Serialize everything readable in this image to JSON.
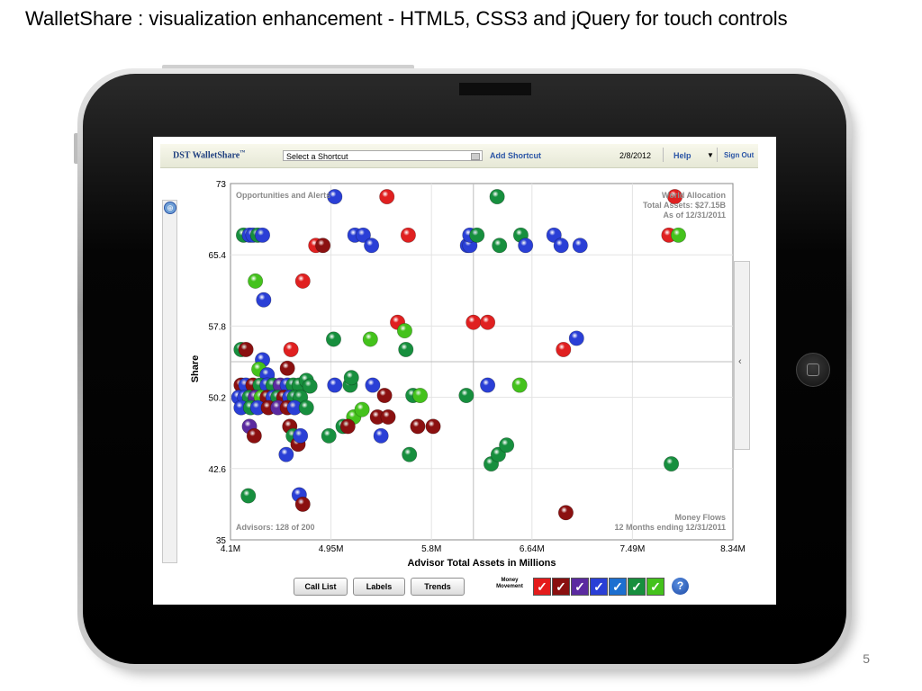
{
  "slide": {
    "title": "WalletShare : visualization enhancement  - HTML5, CSS3 and jQuery for touch controls",
    "number": "5"
  },
  "app": {
    "brand": "DST WalletShare",
    "brand_tm": "™",
    "shortcut_select": "Select a Shortcut",
    "add_shortcut": "Add Shortcut",
    "date": "2/8/2012",
    "help": "Help",
    "sign_out": "Sign Out"
  },
  "chart_labels": {
    "top_left": "Opportunities and Alerts",
    "top_right": [
      "World Allocation",
      "Total Assets: $27.15B",
      "As of 12/31/2011"
    ],
    "bottom_left": "Advisors: 128 of 200",
    "bottom_right": [
      "Money Flows",
      "12 Months ending 12/31/2011"
    ]
  },
  "chart_data": {
    "type": "scatter",
    "xlabel": "Advisor Total Assets in Millions",
    "ylabel": "Share",
    "xticks": [
      "4.1M",
      "4.95M",
      "5.8M",
      "6.64M",
      "7.49M",
      "8.34M"
    ],
    "yticks": [
      "73",
      "65.4",
      "57.8",
      "50.2",
      "42.6",
      "35"
    ],
    "xlim": [
      4.1,
      8.34
    ],
    "ylim": [
      35,
      73
    ],
    "quadrant_lines": {
      "x": 6.15,
      "y": 54.0
    },
    "colors": {
      "red": "#e02020",
      "darkred": "#8b1010",
      "purple": "#5b2aa0",
      "blue": "#2a3fd6",
      "darkgreen": "#178f3e",
      "green": "#44c21c"
    },
    "points": [
      {
        "x": 4.98,
        "y": 71.6,
        "c": "blue"
      },
      {
        "x": 5.42,
        "y": 71.6,
        "c": "red"
      },
      {
        "x": 6.35,
        "y": 71.6,
        "c": "darkgreen"
      },
      {
        "x": 7.85,
        "y": 71.6,
        "c": "red"
      },
      {
        "x": 4.21,
        "y": 67.5,
        "c": "darkgreen"
      },
      {
        "x": 4.26,
        "y": 67.5,
        "c": "blue"
      },
      {
        "x": 4.29,
        "y": 67.5,
        "c": "blue"
      },
      {
        "x": 4.33,
        "y": 67.5,
        "c": "darkgreen"
      },
      {
        "x": 4.37,
        "y": 67.5,
        "c": "blue"
      },
      {
        "x": 4.82,
        "y": 66.4,
        "c": "red"
      },
      {
        "x": 4.88,
        "y": 66.4,
        "c": "darkred"
      },
      {
        "x": 5.15,
        "y": 67.5,
        "c": "blue"
      },
      {
        "x": 5.22,
        "y": 67.5,
        "c": "blue"
      },
      {
        "x": 5.29,
        "y": 66.4,
        "c": "blue"
      },
      {
        "x": 5.6,
        "y": 67.5,
        "c": "red"
      },
      {
        "x": 6.1,
        "y": 66.4,
        "c": "blue"
      },
      {
        "x": 6.12,
        "y": 66.4,
        "c": "blue"
      },
      {
        "x": 6.12,
        "y": 67.5,
        "c": "blue"
      },
      {
        "x": 6.18,
        "y": 67.5,
        "c": "darkgreen"
      },
      {
        "x": 6.37,
        "y": 66.4,
        "c": "darkgreen"
      },
      {
        "x": 6.55,
        "y": 67.5,
        "c": "darkgreen"
      },
      {
        "x": 6.59,
        "y": 66.4,
        "c": "blue"
      },
      {
        "x": 6.83,
        "y": 67.5,
        "c": "blue"
      },
      {
        "x": 6.89,
        "y": 66.4,
        "c": "blue"
      },
      {
        "x": 7.05,
        "y": 66.4,
        "c": "blue"
      },
      {
        "x": 7.8,
        "y": 67.5,
        "c": "red"
      },
      {
        "x": 7.88,
        "y": 67.5,
        "c": "green"
      },
      {
        "x": 4.31,
        "y": 62.6,
        "c": "green"
      },
      {
        "x": 4.71,
        "y": 62.6,
        "c": "red"
      },
      {
        "x": 4.38,
        "y": 60.6,
        "c": "blue"
      },
      {
        "x": 5.51,
        "y": 58.2,
        "c": "red"
      },
      {
        "x": 5.57,
        "y": 57.3,
        "c": "green"
      },
      {
        "x": 6.15,
        "y": 58.2,
        "c": "red"
      },
      {
        "x": 6.27,
        "y": 58.2,
        "c": "red"
      },
      {
        "x": 4.97,
        "y": 56.4,
        "c": "darkgreen"
      },
      {
        "x": 5.28,
        "y": 56.4,
        "c": "green"
      },
      {
        "x": 5.58,
        "y": 55.3,
        "c": "darkgreen"
      },
      {
        "x": 7.02,
        "y": 56.5,
        "c": "blue"
      },
      {
        "x": 6.91,
        "y": 55.3,
        "c": "red"
      },
      {
        "x": 4.19,
        "y": 55.3,
        "c": "darkgreen"
      },
      {
        "x": 4.23,
        "y": 55.3,
        "c": "darkred"
      },
      {
        "x": 4.61,
        "y": 55.3,
        "c": "red"
      },
      {
        "x": 4.37,
        "y": 54.2,
        "c": "blue"
      },
      {
        "x": 4.58,
        "y": 53.3,
        "c": "darkred"
      },
      {
        "x": 4.34,
        "y": 53.2,
        "c": "green"
      },
      {
        "x": 4.41,
        "y": 52.6,
        "c": "blue"
      },
      {
        "x": 4.19,
        "y": 51.5,
        "c": "darkred"
      },
      {
        "x": 4.23,
        "y": 51.5,
        "c": "blue"
      },
      {
        "x": 4.29,
        "y": 51.5,
        "c": "darkred"
      },
      {
        "x": 4.35,
        "y": 51.5,
        "c": "darkgreen"
      },
      {
        "x": 4.41,
        "y": 51.5,
        "c": "blue"
      },
      {
        "x": 4.46,
        "y": 51.5,
        "c": "darkgreen"
      },
      {
        "x": 4.52,
        "y": 51.5,
        "c": "purple"
      },
      {
        "x": 4.58,
        "y": 51.5,
        "c": "blue"
      },
      {
        "x": 4.63,
        "y": 51.5,
        "c": "darkgreen"
      },
      {
        "x": 4.68,
        "y": 51.5,
        "c": "darkgreen"
      },
      {
        "x": 4.74,
        "y": 52.0,
        "c": "darkgreen"
      },
      {
        "x": 4.77,
        "y": 51.4,
        "c": "darkgreen"
      },
      {
        "x": 4.17,
        "y": 50.2,
        "c": "blue"
      },
      {
        "x": 4.22,
        "y": 50.2,
        "c": "blue"
      },
      {
        "x": 4.26,
        "y": 50.2,
        "c": "darkgreen"
      },
      {
        "x": 4.31,
        "y": 50.2,
        "c": "purple"
      },
      {
        "x": 4.36,
        "y": 50.2,
        "c": "green"
      },
      {
        "x": 4.41,
        "y": 50.2,
        "c": "darkred"
      },
      {
        "x": 4.46,
        "y": 50.2,
        "c": "blue"
      },
      {
        "x": 4.5,
        "y": 50.2,
        "c": "darkgreen"
      },
      {
        "x": 4.55,
        "y": 50.2,
        "c": "darkred"
      },
      {
        "x": 4.6,
        "y": 50.2,
        "c": "blue"
      },
      {
        "x": 4.64,
        "y": 50.2,
        "c": "darkgreen"
      },
      {
        "x": 4.69,
        "y": 50.2,
        "c": "darkgreen"
      },
      {
        "x": 4.19,
        "y": 49.1,
        "c": "blue"
      },
      {
        "x": 4.27,
        "y": 49.1,
        "c": "darkgreen"
      },
      {
        "x": 4.33,
        "y": 49.1,
        "c": "blue"
      },
      {
        "x": 4.42,
        "y": 49.1,
        "c": "darkred"
      },
      {
        "x": 4.5,
        "y": 49.1,
        "c": "purple"
      },
      {
        "x": 4.58,
        "y": 49.1,
        "c": "darkred"
      },
      {
        "x": 4.64,
        "y": 49.1,
        "c": "blue"
      },
      {
        "x": 4.74,
        "y": 49.1,
        "c": "darkgreen"
      },
      {
        "x": 4.98,
        "y": 51.5,
        "c": "blue"
      },
      {
        "x": 5.11,
        "y": 51.5,
        "c": "darkgreen"
      },
      {
        "x": 5.12,
        "y": 52.3,
        "c": "darkgreen"
      },
      {
        "x": 5.3,
        "y": 51.5,
        "c": "blue"
      },
      {
        "x": 5.4,
        "y": 50.4,
        "c": "darkred"
      },
      {
        "x": 5.64,
        "y": 50.4,
        "c": "darkgreen"
      },
      {
        "x": 5.7,
        "y": 50.4,
        "c": "green"
      },
      {
        "x": 6.09,
        "y": 50.4,
        "c": "darkgreen"
      },
      {
        "x": 6.27,
        "y": 51.5,
        "c": "blue"
      },
      {
        "x": 6.54,
        "y": 51.5,
        "c": "green"
      },
      {
        "x": 5.14,
        "y": 48.1,
        "c": "green"
      },
      {
        "x": 5.21,
        "y": 48.9,
        "c": "green"
      },
      {
        "x": 5.34,
        "y": 48.1,
        "c": "darkred"
      },
      {
        "x": 5.43,
        "y": 48.1,
        "c": "darkred"
      },
      {
        "x": 5.05,
        "y": 47.1,
        "c": "darkgreen"
      },
      {
        "x": 5.09,
        "y": 47.1,
        "c": "darkred"
      },
      {
        "x": 4.26,
        "y": 47.1,
        "c": "purple"
      },
      {
        "x": 4.3,
        "y": 46.1,
        "c": "darkred"
      },
      {
        "x": 4.6,
        "y": 47.1,
        "c": "darkred"
      },
      {
        "x": 4.63,
        "y": 46.1,
        "c": "darkgreen"
      },
      {
        "x": 4.67,
        "y": 45.2,
        "c": "darkred"
      },
      {
        "x": 4.69,
        "y": 46.1,
        "c": "blue"
      },
      {
        "x": 4.93,
        "y": 46.1,
        "c": "darkgreen"
      },
      {
        "x": 4.57,
        "y": 44.1,
        "c": "blue"
      },
      {
        "x": 5.37,
        "y": 46.1,
        "c": "blue"
      },
      {
        "x": 5.68,
        "y": 47.1,
        "c": "darkred"
      },
      {
        "x": 5.81,
        "y": 47.1,
        "c": "darkred"
      },
      {
        "x": 6.3,
        "y": 43.1,
        "c": "darkgreen"
      },
      {
        "x": 6.36,
        "y": 44.1,
        "c": "darkgreen"
      },
      {
        "x": 6.43,
        "y": 45.1,
        "c": "darkgreen"
      },
      {
        "x": 5.61,
        "y": 44.1,
        "c": "darkgreen"
      },
      {
        "x": 7.82,
        "y": 43.1,
        "c": "darkgreen"
      },
      {
        "x": 4.25,
        "y": 39.7,
        "c": "darkgreen"
      },
      {
        "x": 4.68,
        "y": 39.8,
        "c": "blue"
      },
      {
        "x": 4.71,
        "y": 38.8,
        "c": "darkred"
      },
      {
        "x": 6.93,
        "y": 37.9,
        "c": "darkred"
      }
    ]
  },
  "buttons": {
    "call_list": "Call List",
    "labels": "Labels",
    "trends": "Trends"
  },
  "money_movement": {
    "label": "Money Movement",
    "check": "✓",
    "swatches": [
      "#e41b1b",
      "#8a0f0f",
      "#5b2aa0",
      "#2a3fd6",
      "#1c6fd0",
      "#178f3e",
      "#44c21c"
    ]
  },
  "help_button": "?"
}
